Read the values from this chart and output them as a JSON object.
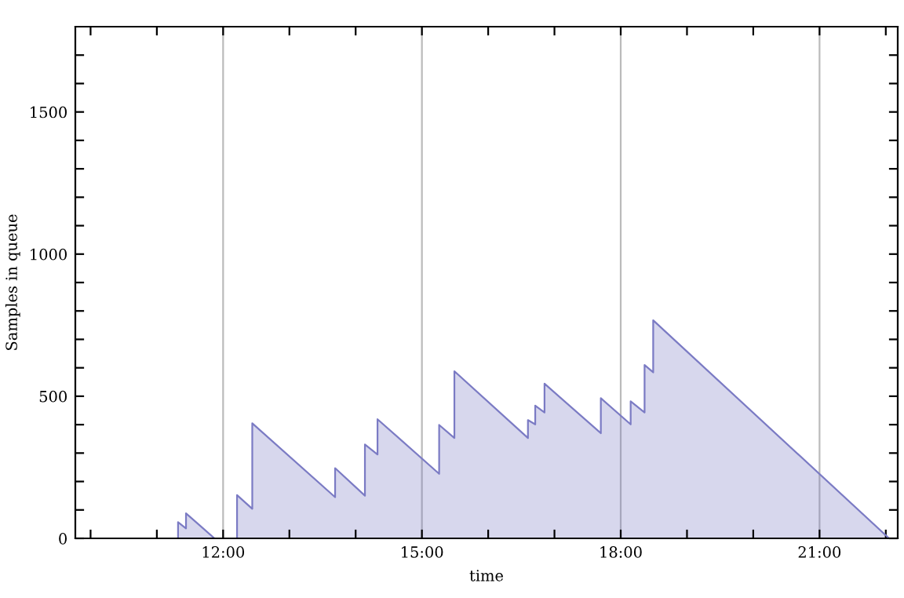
{
  "chart_data": {
    "type": "area",
    "xlabel": "time",
    "ylabel": "Samples in queue",
    "x": [
      11.32,
      11.32,
      11.44,
      11.44,
      11.87,
      12.21,
      12.21,
      12.44,
      12.44,
      13.69,
      13.69,
      14.14,
      14.14,
      14.33,
      14.33,
      15.26,
      15.26,
      15.49,
      15.49,
      16.6,
      16.6,
      16.71,
      16.71,
      16.85,
      16.85,
      17.7,
      17.7,
      18.15,
      18.15,
      18.36,
      18.36,
      18.49,
      18.49,
      22.05
    ],
    "series": [
      {
        "color": "#7b7bc4",
        "values": [
          0,
          57,
          35,
          88,
          0,
          0,
          152,
          104,
          405,
          145,
          247,
          150,
          330,
          295,
          419,
          227,
          399,
          353,
          588,
          353,
          416,
          401,
          467,
          443,
          544,
          370,
          493,
          401,
          482,
          443,
          610,
          584,
          767,
          0
        ]
      }
    ],
    "xlim": [
      9.77,
      22.18
    ],
    "xticks": [
      {
        "value": 10,
        "label": null
      },
      {
        "value": 11,
        "label": null
      },
      {
        "value": 12,
        "label": "12:00"
      },
      {
        "value": 13,
        "label": null
      },
      {
        "value": 14,
        "label": null
      },
      {
        "value": 15,
        "label": "15:00"
      },
      {
        "value": 16,
        "label": null
      },
      {
        "value": 17,
        "label": null
      },
      {
        "value": 18,
        "label": "18:00"
      },
      {
        "value": 19,
        "label": null
      },
      {
        "value": 20,
        "label": null
      },
      {
        "value": 21,
        "label": "21:00"
      },
      {
        "value": 22,
        "label": null
      }
    ],
    "ylim": [
      0,
      1800
    ],
    "yticks": [
      0,
      {
        "value": 100,
        "label": null
      },
      {
        "value": 200,
        "label": null
      },
      {
        "value": 300,
        "label": null
      },
      {
        "value": 400,
        "label": null
      },
      500,
      {
        "value": 600,
        "label": null
      },
      {
        "value": 700,
        "label": null
      },
      {
        "value": 800,
        "label": null
      },
      {
        "value": 900,
        "label": null
      },
      1000,
      {
        "value": 1100,
        "label": null
      },
      {
        "value": 1200,
        "label": null
      },
      {
        "value": 1300,
        "label": null
      },
      {
        "value": 1400,
        "label": null
      },
      1500,
      {
        "value": 1600,
        "label": null
      },
      {
        "value": 1700,
        "label": null
      }
    ],
    "grid": "x",
    "legend": false
  }
}
